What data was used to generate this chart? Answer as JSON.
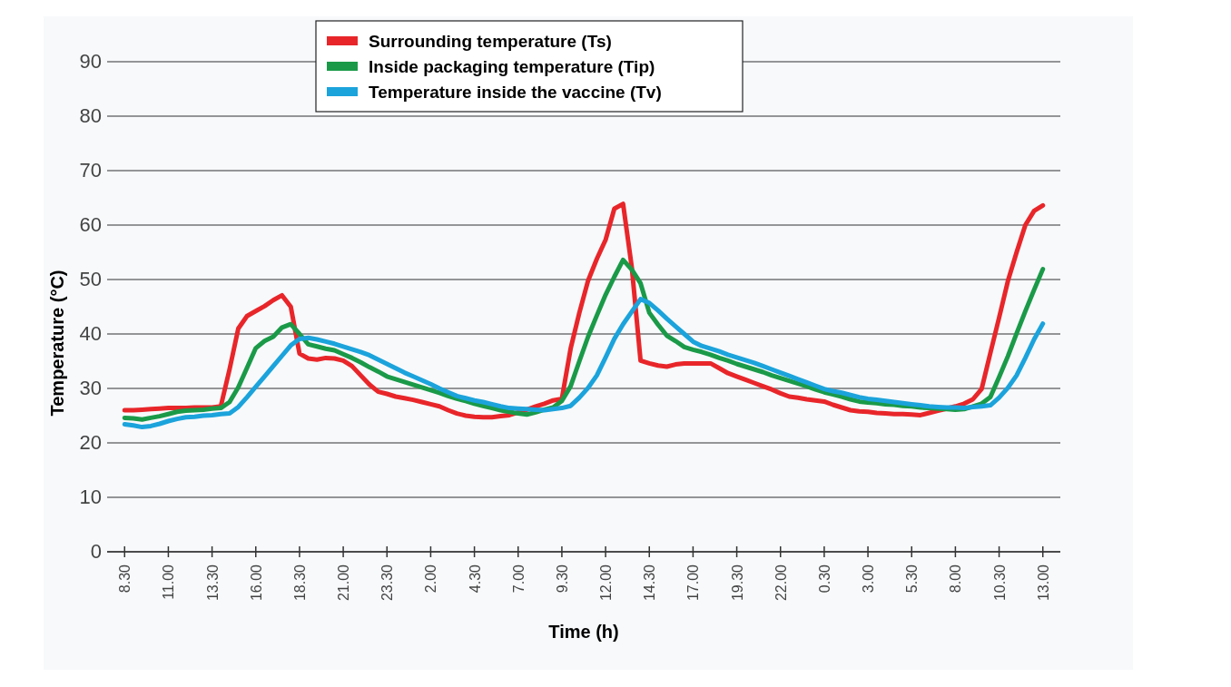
{
  "chart_data": {
    "type": "line",
    "xlabel": "Time (h)",
    "ylabel": "Temperature (°C)",
    "ylim": [
      0,
      90
    ],
    "yticks": [
      0,
      10,
      20,
      30,
      40,
      50,
      60,
      70,
      80,
      90
    ],
    "categories": [
      "8.30",
      null,
      null,
      null,
      null,
      "11.00",
      null,
      null,
      null,
      null,
      "13.30",
      null,
      null,
      null,
      null,
      "16.00",
      null,
      null,
      null,
      null,
      "18.30",
      null,
      null,
      null,
      null,
      "21.00",
      null,
      null,
      null,
      null,
      "23.30",
      null,
      null,
      null,
      null,
      "2.00",
      null,
      null,
      null,
      null,
      "4.30",
      null,
      null,
      null,
      null,
      "7.00",
      null,
      null,
      null,
      null,
      "9.30",
      null,
      null,
      null,
      null,
      "12.00",
      null,
      null,
      null,
      null,
      "14.30",
      null,
      null,
      null,
      null,
      "17.00",
      null,
      null,
      null,
      null,
      "19.30",
      null,
      null,
      null,
      null,
      "22.00",
      null,
      null,
      null,
      null,
      "0.30",
      null,
      null,
      null,
      null,
      "3.00",
      null,
      null,
      null,
      null,
      "5.30",
      null,
      null,
      null,
      null,
      "8.00",
      null,
      null,
      null,
      null,
      "10.30",
      null,
      null,
      null,
      null,
      "13.00"
    ],
    "grid": "y",
    "legend": "top",
    "line_style": "solid",
    "marker": "none",
    "series": [
      {
        "name": "Surrounding temperature (Ts)",
        "color": "#e8262a",
        "values": [
          26,
          26,
          26.1,
          26.2,
          26.3,
          26.4,
          26.4,
          26.4,
          26.5,
          26.5,
          26.5,
          26.7,
          33.5,
          41,
          43.3,
          44.2,
          45.1,
          46.2,
          47.1,
          45,
          36.4,
          35.5,
          35.3,
          35.6,
          35.5,
          35.1,
          34.1,
          32.4,
          30.7,
          29.4,
          29,
          28.5,
          28.2,
          27.9,
          27.5,
          27.1,
          26.7,
          26,
          25.4,
          25,
          24.8,
          24.7,
          24.7,
          24.9,
          25.1,
          25.6,
          26.1,
          26.7,
          27.2,
          27.8,
          28.1,
          37.3,
          43.9,
          49.8,
          53.8,
          57.3,
          63,
          63.9,
          52.2,
          35.1,
          34.6,
          34.2,
          34,
          34.4,
          34.6,
          34.6,
          34.6,
          34.6,
          33.7,
          32.8,
          32.2,
          31.6,
          31,
          30.4,
          29.8,
          29.1,
          28.5,
          28.3,
          28,
          27.8,
          27.6,
          27,
          26.5,
          26,
          25.8,
          25.7,
          25.5,
          25.4,
          25.3,
          25.3,
          25.2,
          25.1,
          25.5,
          25.9,
          26.3,
          26.7,
          27.2,
          28,
          29.9,
          36.5,
          43,
          49.7,
          55,
          60,
          62.6,
          63.6
        ]
      },
      {
        "name": "Inside packaging temperature (Tip)",
        "color": "#1a9a48",
        "values": [
          24.6,
          24.5,
          24.3,
          24.6,
          24.9,
          25.3,
          25.7,
          25.9,
          26,
          26.1,
          26.3,
          26.4,
          27.5,
          30.2,
          33.8,
          37.4,
          38.7,
          39.5,
          41.2,
          41.8,
          40,
          38.1,
          37.7,
          37.3,
          37,
          36.3,
          35.6,
          34.8,
          33.9,
          33.1,
          32.2,
          31.7,
          31.2,
          30.7,
          30.2,
          29.7,
          29.2,
          28.6,
          28.1,
          27.7,
          27.2,
          26.8,
          26.4,
          26,
          25.7,
          25.4,
          25.2,
          25.6,
          26.1,
          26.5,
          27.7,
          30.4,
          35,
          39.5,
          43.4,
          47.2,
          50.5,
          53.6,
          51.8,
          49.3,
          43.9,
          41.7,
          39.7,
          38.7,
          37.6,
          37.1,
          36.7,
          36.2,
          35.6,
          35.1,
          34.5,
          34,
          33.5,
          33,
          32.4,
          31.9,
          31.4,
          30.9,
          30.4,
          29.8,
          29.3,
          28.9,
          28.5,
          28,
          27.6,
          27.4,
          27.3,
          27.1,
          27,
          26.8,
          26.7,
          26.5,
          26.4,
          26.3,
          26.2,
          26.1,
          26.2,
          26.7,
          27.2,
          28.4,
          32.1,
          35.9,
          40.1,
          44.2,
          48.1,
          51.9
        ]
      },
      {
        "name": "Temperature inside the vaccine (Tv)",
        "color": "#1ba3dc",
        "values": [
          23.4,
          23.2,
          22.9,
          23.1,
          23.5,
          24,
          24.4,
          24.7,
          24.8,
          25,
          25.1,
          25.3,
          25.4,
          26.6,
          28.4,
          30.3,
          32.2,
          34.1,
          36,
          37.9,
          39.1,
          39.3,
          39,
          38.6,
          38.2,
          37.7,
          37.2,
          36.7,
          36.1,
          35.3,
          34.5,
          33.7,
          32.9,
          32.2,
          31.5,
          30.8,
          30,
          29.3,
          28.6,
          28.2,
          27.8,
          27.5,
          27.1,
          26.7,
          26.4,
          26.3,
          26.2,
          26.1,
          26,
          26.2,
          26.4,
          26.8,
          28.3,
          30.1,
          32.4,
          35.7,
          39.1,
          41.8,
          44.1,
          46.4,
          45.7,
          44.3,
          42.8,
          41.4,
          40,
          38.6,
          37.8,
          37.3,
          36.8,
          36.2,
          35.7,
          35.2,
          34.7,
          34.1,
          33.5,
          32.9,
          32.3,
          31.7,
          31.1,
          30.5,
          29.9,
          29.5,
          29.2,
          28.8,
          28.4,
          28.1,
          27.9,
          27.7,
          27.5,
          27.3,
          27.1,
          26.9,
          26.7,
          26.6,
          26.5,
          26.5,
          26.4,
          26.6,
          26.7,
          26.9,
          28.3,
          30.1,
          32.4,
          35.6,
          39,
          41.9
        ]
      }
    ]
  }
}
